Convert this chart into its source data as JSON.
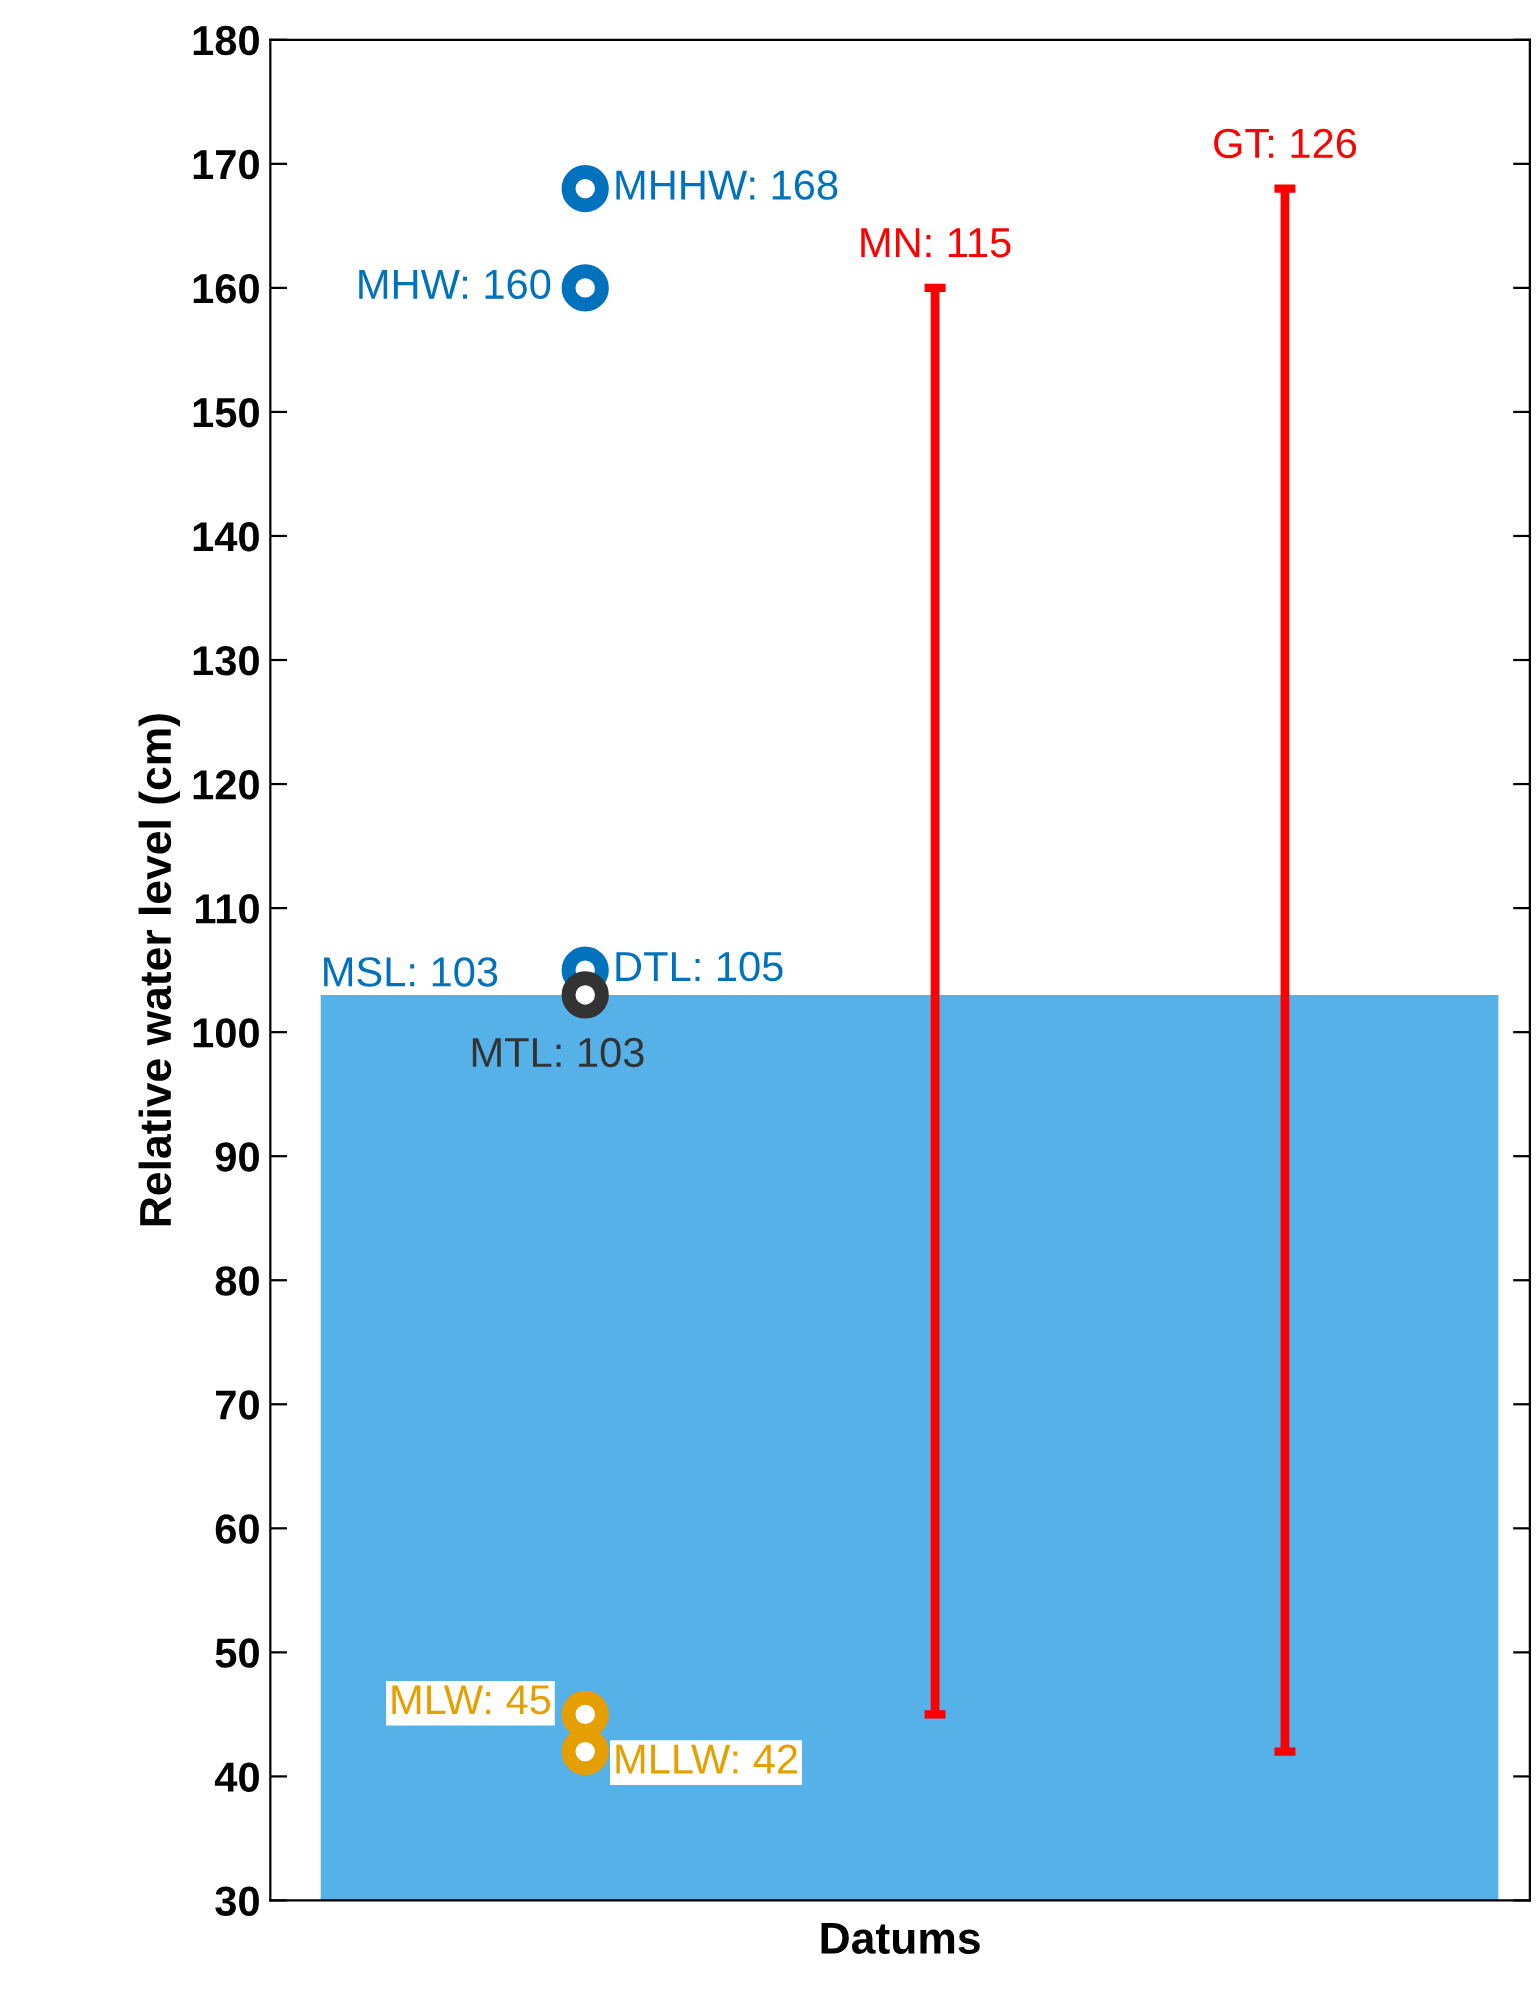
{
  "chart_data": {
    "type": "scatter",
    "xlabel": "Datums",
    "ylabel": "Relative water level (cm)",
    "categories": [
      null,
      null,
      null
    ],
    "ylim": [
      30,
      180
    ],
    "yticks": [
      30,
      40,
      50,
      60,
      70,
      80,
      90,
      100,
      110,
      120,
      130,
      140,
      150,
      160,
      170,
      180
    ],
    "tick_labels": "y",
    "grid": false,
    "legend": false,
    "marker": "circle",
    "bands": [
      {
        "axis": "y",
        "from": 30,
        "to": 103,
        "label": "MSL: 103",
        "color": "#56b1e8"
      }
    ],
    "series": [
      {
        "color": "#0072bd",
        "values": [
          168,
          null,
          null
        ],
        "value_labels": [
          "MHHW: 168",
          null,
          null
        ]
      },
      {
        "color": "#0072bd",
        "values": [
          160,
          null,
          null
        ],
        "value_labels": [
          "MHW: 160",
          null,
          null
        ]
      },
      {
        "color": "#0072bd",
        "values": [
          105,
          null,
          null
        ],
        "value_labels": [
          "DTL: 105",
          null,
          null
        ]
      },
      {
        "color": "#333333",
        "values": [
          103,
          null,
          null
        ],
        "value_labels": [
          "MTL: 103",
          null,
          null
        ]
      },
      {
        "color": "#e5a000",
        "values": [
          45,
          null,
          null
        ],
        "value_labels": [
          "MLW: 45",
          null,
          null
        ]
      },
      {
        "color": "#e5a000",
        "values": [
          42,
          null,
          null
        ],
        "value_labels": [
          "MLLW: 42",
          null,
          null
        ]
      },
      {
        "type": "bar",
        "color": "#ff0000",
        "values": [
          null,
          115,
          126
        ],
        "base": [
          null,
          45,
          42
        ],
        "value_labels": [
          null,
          "MN: 115",
          "GT: 126"
        ]
      }
    ]
  }
}
